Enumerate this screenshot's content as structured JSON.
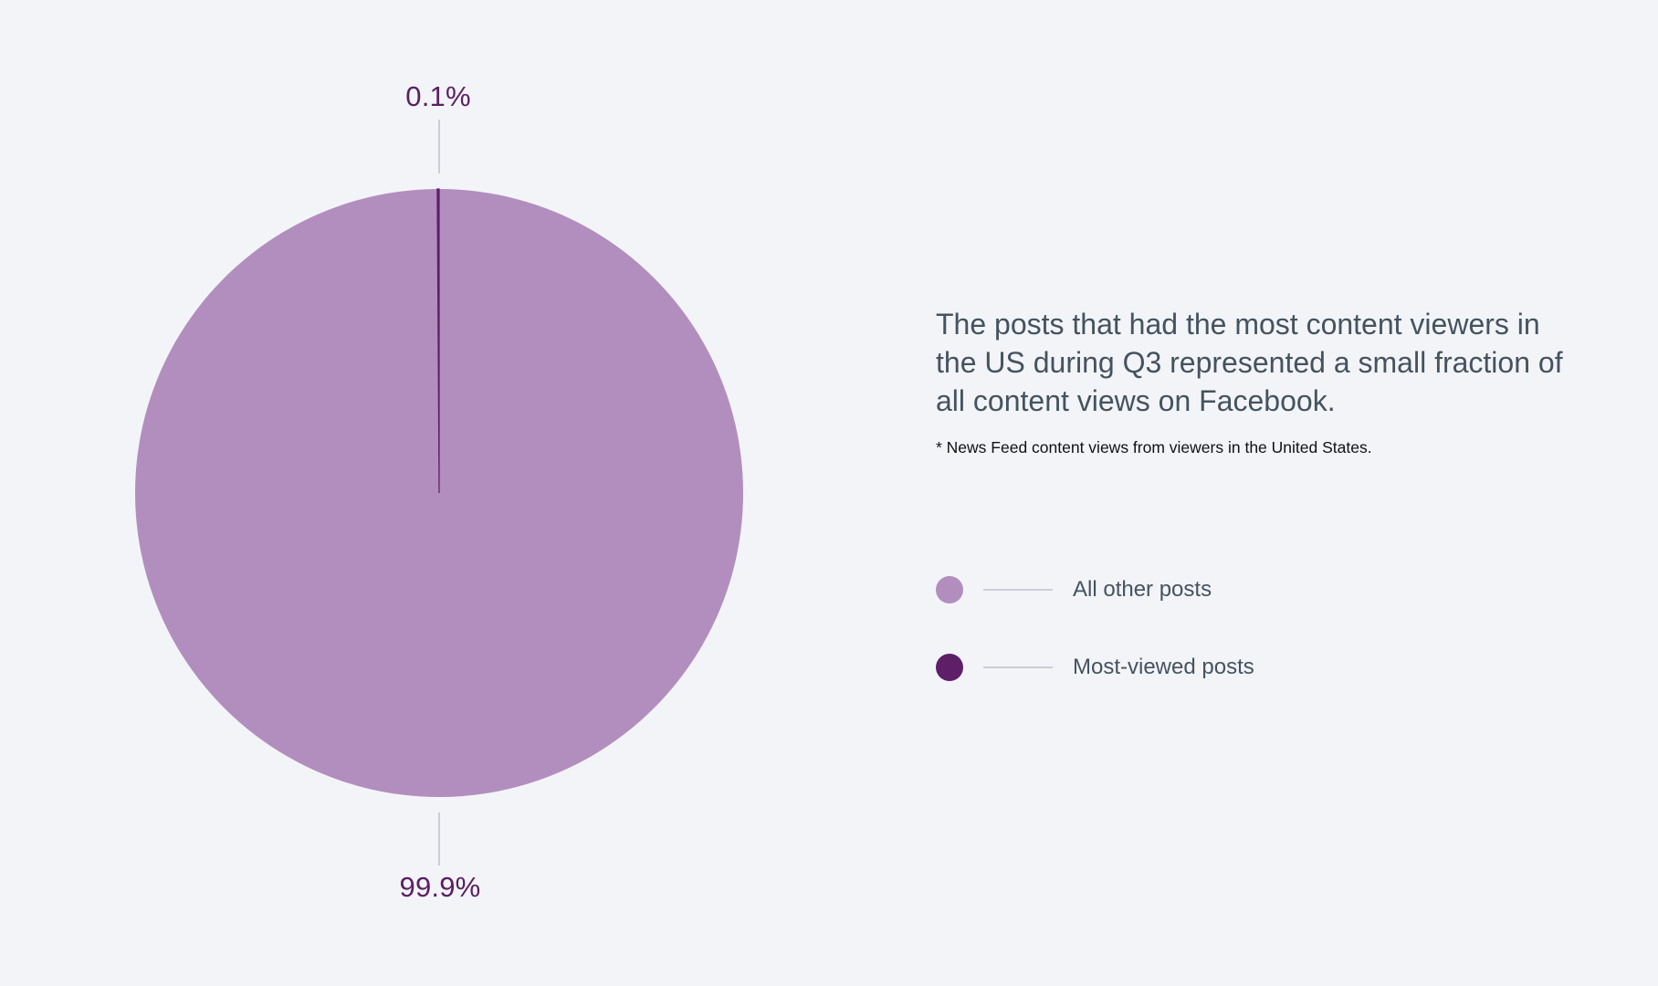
{
  "chart_data": {
    "type": "pie",
    "categories": [
      "Most-viewed posts",
      "All other posts"
    ],
    "values": [
      0.1,
      99.9
    ],
    "data_labels": [
      "0.1%",
      "99.9%"
    ],
    "colors": [
      "#5e1e68",
      "#b28ebe"
    ],
    "title": "The posts that had the most content viewers in the US during Q3 represented a small fraction of all content views on Facebook.",
    "footnote": "* News Feed content views from viewers in the United States.",
    "legend": {
      "placement": "right",
      "items": [
        {
          "label": "All other posts",
          "color": "#b28ebe"
        },
        {
          "label": "Most-viewed posts",
          "color": "#5e1e68"
        }
      ]
    }
  },
  "colors": {
    "background": "#f3f4f8",
    "text": "#44535f",
    "label": "#5b2063",
    "connector": "#c9ced6"
  }
}
